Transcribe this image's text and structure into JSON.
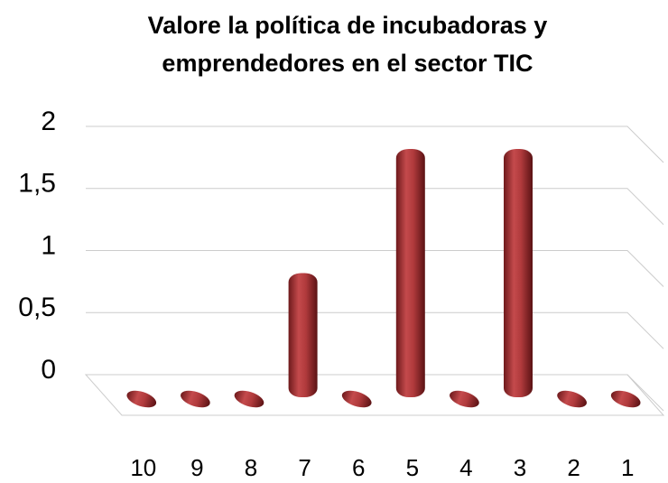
{
  "chart_data": {
    "type": "bar",
    "title": [
      "Valore la política de incubadoras y",
      "emprendedores en el sector TIC"
    ],
    "categories": [
      "10",
      "9",
      "8",
      "7",
      "6",
      "5",
      "4",
      "3",
      "2",
      "1"
    ],
    "values": [
      0,
      0,
      0,
      1,
      0,
      2,
      0,
      2,
      0,
      0
    ],
    "color": "#a8383a",
    "ylim": [
      0,
      2
    ],
    "yticks": [
      0,
      {
        "value": 0.5,
        "label": "0,5"
      },
      1,
      {
        "value": 1.5,
        "label": "1,5"
      },
      2
    ],
    "grid": true
  }
}
